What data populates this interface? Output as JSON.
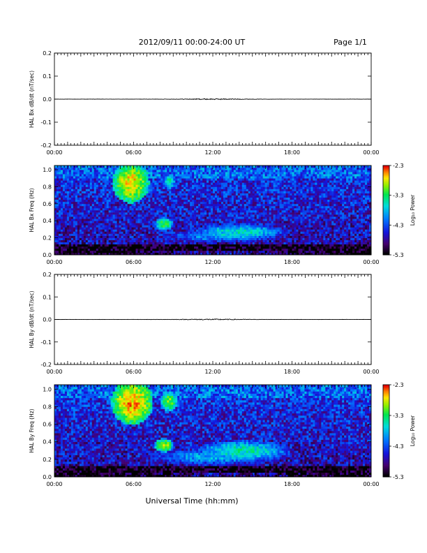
{
  "header": {
    "title": "2012/09/11  00:00-24:00 UT",
    "page": "Page 1/1"
  },
  "footer": {
    "xlabel": "Universal Time (hh:mm)"
  },
  "time_ticks": [
    "00:00",
    "06:00",
    "12:00",
    "18:00",
    "00:00"
  ],
  "chart_data": [
    {
      "type": "line",
      "id": "bx-ts",
      "ylabel": "HAL Bx dB/dt (nT/sec)",
      "xlim": [
        0,
        24
      ],
      "ylim": [
        -0.2,
        0.2
      ],
      "yticks": [
        "0.2",
        "0.1",
        "0.0",
        "-0.1",
        "-0.2"
      ],
      "ytick_values": [
        0.2,
        0.1,
        0.0,
        -0.1,
        -0.2
      ],
      "series": [
        {
          "x": [
            0,
            4.5,
            8,
            10.5,
            11.5,
            12.5,
            14,
            16,
            20,
            24
          ],
          "y": [
            0,
            0,
            0,
            0,
            0,
            0,
            0,
            0,
            0,
            0
          ]
        }
      ]
    },
    {
      "type": "heatmap",
      "id": "bx-spec",
      "ylabel": "HAL Bx Freq (Hz)",
      "xlim": [
        0,
        24
      ],
      "ylim": [
        0,
        1.05
      ],
      "yticks": [
        "1.0",
        "0.8",
        "0.6",
        "0.4",
        "0.2",
        "0.0"
      ],
      "ytick_values": [
        1.0,
        0.8,
        0.6,
        0.4,
        0.2,
        0.0
      ],
      "colorbar": {
        "label": "Log₁₀ Power",
        "ticks": [
          "-2.3",
          "-3.3",
          "-4.3",
          "-5.3"
        ],
        "tick_values": [
          -2.3,
          -3.3,
          -4.3,
          -5.3
        ],
        "range": [
          -5.3,
          -2.3
        ]
      },
      "features": [
        {
          "t": 5.8,
          "f": 0.85,
          "dt": 0.7,
          "df": 0.12,
          "p": -2.7
        },
        {
          "t": 8.3,
          "f": 0.36,
          "dt": 0.35,
          "df": 0.04,
          "p": -3.2
        },
        {
          "t": 8.7,
          "f": 0.86,
          "dt": 0.25,
          "df": 0.05,
          "p": -3.5
        },
        {
          "t": 14.0,
          "f": 0.27,
          "dt": 1.8,
          "df": 0.05,
          "p": -3.6
        },
        {
          "t": 12.5,
          "f": 0.22,
          "dt": 2.5,
          "df": 0.04,
          "p": -4.0
        }
      ]
    },
    {
      "type": "line",
      "id": "by-ts",
      "ylabel": "HAL By dB/dt (nT/sec)",
      "xlim": [
        0,
        24
      ],
      "ylim": [
        -0.2,
        0.2
      ],
      "yticks": [
        "0.2",
        "0.1",
        "0.0",
        "-0.1",
        "-0.2"
      ],
      "ytick_values": [
        0.2,
        0.1,
        0.0,
        -0.1,
        -0.2
      ],
      "series": [
        {
          "x": [
            0,
            4.5,
            8,
            10.5,
            11.5,
            12.5,
            14,
            16,
            20,
            24
          ],
          "y": [
            0,
            0,
            0,
            0,
            0,
            0,
            0,
            0,
            0,
            0
          ]
        }
      ]
    },
    {
      "type": "heatmap",
      "id": "by-spec",
      "ylabel": "HAL By Freq (Hz)",
      "xlim": [
        0,
        24
      ],
      "ylim": [
        0,
        1.05
      ],
      "yticks": [
        "1.0",
        "0.8",
        "0.6",
        "0.4",
        "0.2",
        "0.0"
      ],
      "ytick_values": [
        1.0,
        0.8,
        0.6,
        0.4,
        0.2,
        0.0
      ],
      "colorbar": {
        "label": "Log₁₀ Power",
        "ticks": [
          "-2.3",
          "-3.3",
          "-4.3",
          "-5.3"
        ],
        "tick_values": [
          -2.3,
          -3.3,
          -4.3,
          -5.3
        ],
        "range": [
          -5.3,
          -2.3
        ]
      },
      "features": [
        {
          "t": 5.9,
          "f": 0.85,
          "dt": 0.8,
          "df": 0.13,
          "p": -2.6
        },
        {
          "t": 8.3,
          "f": 0.36,
          "dt": 0.35,
          "df": 0.04,
          "p": -2.9
        },
        {
          "t": 8.7,
          "f": 0.86,
          "dt": 0.3,
          "df": 0.06,
          "p": -3.0
        },
        {
          "t": 14.3,
          "f": 0.3,
          "dt": 1.8,
          "df": 0.06,
          "p": -3.5
        },
        {
          "t": 12.0,
          "f": 0.23,
          "dt": 2.8,
          "df": 0.05,
          "p": -3.9
        }
      ]
    }
  ]
}
